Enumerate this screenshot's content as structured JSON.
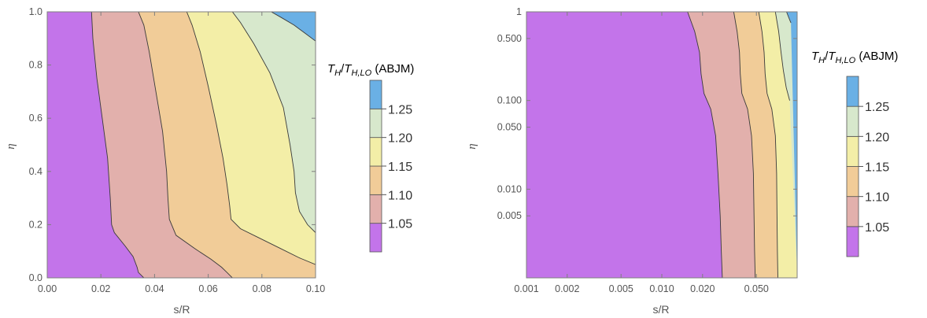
{
  "chart_data": [
    {
      "type": "contour",
      "xlabel": "s/R",
      "ylabel": "η",
      "xscale": "linear",
      "yscale": "linear",
      "xlim": [
        0,
        0.1
      ],
      "ylim": [
        0,
        1
      ],
      "xticks": [
        "0.00",
        "0.02",
        "0.04",
        "0.06",
        "0.08",
        "0.10"
      ],
      "yticks": [
        "0.0",
        "0.2",
        "0.4",
        "0.6",
        "0.8",
        "1.0"
      ],
      "contour_levels": [
        1.05,
        1.1,
        1.15,
        1.2,
        1.25
      ],
      "contour_lines": [
        {
          "level": 1.05,
          "points": [
            [
              0.0165,
              1.0
            ],
            [
              0.017,
              0.9
            ],
            [
              0.0185,
              0.75
            ],
            [
              0.0205,
              0.6
            ],
            [
              0.0225,
              0.45
            ],
            [
              0.0235,
              0.3
            ],
            [
              0.024,
              0.2
            ],
            [
              0.025,
              0.17
            ],
            [
              0.029,
              0.12
            ],
            [
              0.032,
              0.08
            ],
            [
              0.0335,
              0.04
            ],
            [
              0.034,
              0.02
            ],
            [
              0.036,
              0.0
            ]
          ]
        },
        {
          "level": 1.1,
          "points": [
            [
              0.034,
              1.0
            ],
            [
              0.036,
              0.95
            ],
            [
              0.038,
              0.85
            ],
            [
              0.0405,
              0.7
            ],
            [
              0.043,
              0.55
            ],
            [
              0.0445,
              0.4
            ],
            [
              0.045,
              0.3
            ],
            [
              0.0455,
              0.22
            ],
            [
              0.048,
              0.16
            ],
            [
              0.055,
              0.11
            ],
            [
              0.061,
              0.07
            ],
            [
              0.065,
              0.04
            ],
            [
              0.067,
              0.02
            ],
            [
              0.069,
              0.0
            ]
          ]
        },
        {
          "level": 1.15,
          "points": [
            [
              0.052,
              1.0
            ],
            [
              0.054,
              0.95
            ],
            [
              0.057,
              0.85
            ],
            [
              0.06,
              0.72
            ],
            [
              0.063,
              0.58
            ],
            [
              0.0655,
              0.45
            ],
            [
              0.067,
              0.35
            ],
            [
              0.068,
              0.27
            ],
            [
              0.0685,
              0.22
            ],
            [
              0.072,
              0.185
            ],
            [
              0.079,
              0.15
            ],
            [
              0.087,
              0.11
            ],
            [
              0.094,
              0.075
            ],
            [
              0.1,
              0.05
            ]
          ]
        },
        {
          "level": 1.2,
          "points": [
            [
              0.069,
              1.0
            ],
            [
              0.072,
              0.96
            ],
            [
              0.077,
              0.88
            ],
            [
              0.083,
              0.77
            ],
            [
              0.088,
              0.64
            ],
            [
              0.0905,
              0.5
            ],
            [
              0.092,
              0.4
            ],
            [
              0.0925,
              0.32
            ],
            [
              0.094,
              0.25
            ],
            [
              0.097,
              0.2
            ],
            [
              0.1,
              0.17
            ]
          ]
        },
        {
          "level": 1.25,
          "points": [
            [
              0.0835,
              1.0
            ],
            [
              0.087,
              0.98
            ],
            [
              0.092,
              0.95
            ],
            [
              0.096,
              0.92
            ],
            [
              0.1,
              0.89
            ]
          ]
        }
      ]
    },
    {
      "type": "contour",
      "xlabel": "s/R",
      "ylabel": "η",
      "xscale": "log",
      "yscale": "log",
      "xlim": [
        0.001,
        0.1
      ],
      "ylim": [
        0.001,
        1
      ],
      "xticks": [
        "0.001",
        "0.002",
        "0.005",
        "0.010",
        "0.020",
        "0.050"
      ],
      "yticks": [
        "1",
        "0.500",
        "0.100",
        "0.050",
        "0.010",
        "0.005"
      ],
      "contour_levels": [
        1.05,
        1.1,
        1.15,
        1.2,
        1.25
      ],
      "contour_lines": [
        {
          "level": 1.05,
          "points": [
            [
              0.0155,
              1.0
            ],
            [
              0.0175,
              0.6
            ],
            [
              0.019,
              0.35
            ],
            [
              0.0195,
              0.2
            ],
            [
              0.0205,
              0.12
            ],
            [
              0.023,
              0.08
            ],
            [
              0.025,
              0.04
            ],
            [
              0.026,
              0.015
            ],
            [
              0.027,
              0.005
            ],
            [
              0.0275,
              0.002
            ],
            [
              0.028,
              0.001
            ]
          ]
        },
        {
          "level": 1.1,
          "points": [
            [
              0.034,
              1.0
            ],
            [
              0.036,
              0.6
            ],
            [
              0.0375,
              0.35
            ],
            [
              0.038,
              0.2
            ],
            [
              0.039,
              0.12
            ],
            [
              0.043,
              0.08
            ],
            [
              0.046,
              0.04
            ],
            [
              0.0475,
              0.015
            ],
            [
              0.048,
              0.005
            ],
            [
              0.0485,
              0.002
            ],
            [
              0.049,
              0.001
            ]
          ]
        },
        {
          "level": 1.15,
          "points": [
            [
              0.052,
              1.0
            ],
            [
              0.055,
              0.6
            ],
            [
              0.057,
              0.35
            ],
            [
              0.058,
              0.2
            ],
            [
              0.06,
              0.12
            ],
            [
              0.065,
              0.08
            ],
            [
              0.069,
              0.04
            ],
            [
              0.0705,
              0.015
            ],
            [
              0.071,
              0.005
            ],
            [
              0.0715,
              0.002
            ],
            [
              0.072,
              0.001
            ]
          ]
        },
        {
          "level": 1.2,
          "points": [
            [
              0.069,
              1.0
            ],
            [
              0.073,
              0.6
            ],
            [
              0.076,
              0.35
            ],
            [
              0.079,
              0.22
            ],
            [
              0.083,
              0.14
            ],
            [
              0.088,
              0.1
            ]
          ]
        },
        {
          "level": 1.25,
          "points": [
            [
              0.0835,
              1.0
            ],
            [
              0.087,
              0.85
            ],
            [
              0.09,
              0.75
            ]
          ]
        }
      ]
    }
  ],
  "colorbar": {
    "title_T": "T",
    "title_H": "H",
    "title_sub": "H,LO",
    "title_suffix": "(ABJM)",
    "labels": [
      "1.05",
      "1.10",
      "1.15",
      "1.20",
      "1.25"
    ],
    "colors": [
      "#c374ea",
      "#e2b0ac",
      "#f1cc98",
      "#f3eea7",
      "#d7e8cc",
      "#6ab0e5"
    ]
  }
}
